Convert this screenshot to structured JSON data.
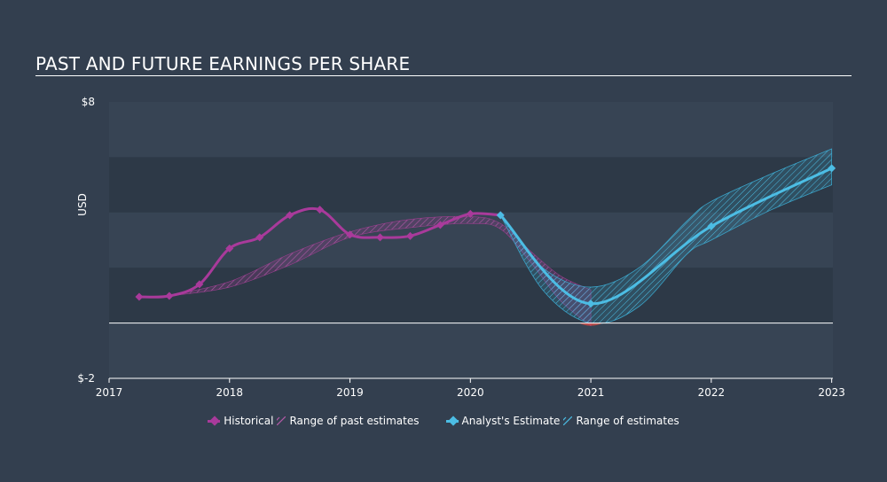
{
  "header": {
    "title": "PAST AND FUTURE EARNINGS PER SHARE"
  },
  "colors": {
    "background": "#333f4f",
    "band_dark": "#2d3947",
    "band_light": "#374454",
    "historical": "#a93a9b",
    "past_range": "#9c3d8f",
    "estimate": "#4cbde4",
    "estimate_range": "#3aa3c8",
    "negative": "#e8483d",
    "zero_line": "#ffffff"
  },
  "legend": {
    "historical": "Historical",
    "past_range": "Range of past estimates",
    "estimate": "Analyst's Estimate",
    "estimate_range": "Range of estimates"
  },
  "chart_data": {
    "type": "line",
    "title": "PAST AND FUTURE EARNINGS PER SHARE",
    "ylabel": "USD",
    "xlabel": "",
    "ylim": [
      -2,
      8
    ],
    "xlim": [
      2017,
      2023.01
    ],
    "y_tick_labels": [
      {
        "value": 8,
        "label": "$8"
      },
      {
        "value": -2,
        "label": "$-2"
      }
    ],
    "x_tick_labels": [
      {
        "value": 2017,
        "label": "2017"
      },
      {
        "value": 2018,
        "label": "2018"
      },
      {
        "value": 2019,
        "label": "2019"
      },
      {
        "value": 2020,
        "label": "2020"
      },
      {
        "value": 2021,
        "label": "2021"
      },
      {
        "value": 2022,
        "label": "2022"
      },
      {
        "value": 2023,
        "label": "2023"
      }
    ],
    "legend_position": "bottom-center",
    "series": [
      {
        "name": "Historical",
        "points": [
          [
            2017.25,
            0.95
          ],
          [
            2017.5,
            0.98
          ],
          [
            2017.75,
            1.4
          ],
          [
            2018.0,
            2.7
          ],
          [
            2018.25,
            3.1
          ],
          [
            2018.5,
            3.9
          ],
          [
            2018.75,
            4.1
          ],
          [
            2019.0,
            3.2
          ],
          [
            2019.25,
            3.1
          ],
          [
            2019.5,
            3.15
          ],
          [
            2019.75,
            3.55
          ],
          [
            2020.0,
            3.95
          ],
          [
            2020.25,
            3.9
          ]
        ]
      },
      {
        "name": "Range of past estimates",
        "upper": [
          [
            2017.5,
            1.0
          ],
          [
            2018.0,
            1.5
          ],
          [
            2018.5,
            2.5
          ],
          [
            2019.0,
            3.3
          ],
          [
            2019.5,
            3.75
          ],
          [
            2020.0,
            3.85
          ],
          [
            2020.25,
            3.6
          ],
          [
            2020.5,
            2.6
          ],
          [
            2020.75,
            1.7
          ],
          [
            2021.0,
            1.2
          ]
        ],
        "lower": [
          [
            2017.5,
            0.98
          ],
          [
            2018.0,
            1.3
          ],
          [
            2018.5,
            2.1
          ],
          [
            2019.0,
            3.1
          ],
          [
            2019.5,
            3.45
          ],
          [
            2020.0,
            3.6
          ],
          [
            2020.25,
            3.4
          ],
          [
            2020.5,
            2.2
          ],
          [
            2020.75,
            0.8
          ],
          [
            2021.0,
            -0.1
          ]
        ]
      },
      {
        "name": "Analyst's Estimate",
        "points": [
          [
            2020.25,
            3.9
          ],
          [
            2021.0,
            0.7
          ],
          [
            2022.0,
            3.5
          ],
          [
            2023.0,
            5.6
          ]
        ]
      },
      {
        "name": "Range of estimates",
        "upper": [
          [
            2020.25,
            3.9
          ],
          [
            2020.6,
            2.0
          ],
          [
            2021.0,
            1.3
          ],
          [
            2021.4,
            2.0
          ],
          [
            2021.8,
            3.7
          ],
          [
            2022.0,
            4.4
          ],
          [
            2022.5,
            5.4
          ],
          [
            2023.0,
            6.3
          ]
        ],
        "lower": [
          [
            2020.25,
            3.9
          ],
          [
            2020.6,
            1.2
          ],
          [
            2021.0,
            0.0
          ],
          [
            2021.4,
            0.6
          ],
          [
            2021.8,
            2.5
          ],
          [
            2022.0,
            3.0
          ],
          [
            2022.5,
            4.1
          ],
          [
            2023.0,
            5.0
          ]
        ]
      }
    ]
  }
}
